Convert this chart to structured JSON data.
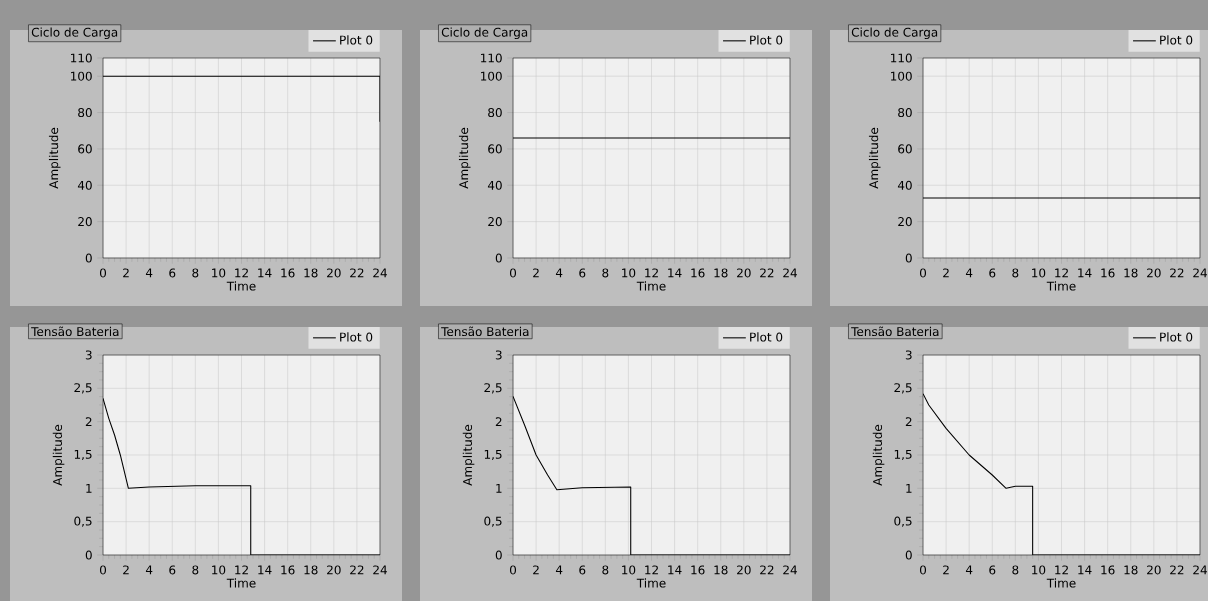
{
  "chart_data": [
    {
      "type": "line",
      "title": "Ciclo de Carga",
      "xlabel": "Time",
      "ylabel": "Amplitude",
      "xlim": [
        0,
        24
      ],
      "ylim": [
        0,
        110
      ],
      "xticks": [
        0,
        2,
        4,
        6,
        8,
        10,
        12,
        14,
        16,
        18,
        20,
        22,
        24
      ],
      "yticks": [
        0,
        20,
        40,
        60,
        80,
        100,
        110
      ],
      "grid": true,
      "legend": "top right",
      "series": [
        {
          "name": "Plot 0",
          "color": "#000000",
          "x": [
            0,
            24,
            24
          ],
          "values": [
            100,
            100,
            75
          ]
        }
      ]
    },
    {
      "type": "line",
      "title": "Ciclo de Carga",
      "xlabel": "Time",
      "ylabel": "Amplitude",
      "xlim": [
        0,
        24
      ],
      "ylim": [
        0,
        110
      ],
      "xticks": [
        0,
        2,
        4,
        6,
        8,
        10,
        12,
        14,
        16,
        18,
        20,
        22,
        24
      ],
      "yticks": [
        0,
        20,
        40,
        60,
        80,
        100,
        110
      ],
      "grid": true,
      "legend": "top right",
      "series": [
        {
          "name": "Plot 0",
          "color": "#000000",
          "x": [
            0,
            24
          ],
          "values": [
            66,
            66
          ]
        }
      ]
    },
    {
      "type": "line",
      "title": "Ciclo de Carga",
      "xlabel": "Time",
      "ylabel": "Amplitude",
      "xlim": [
        0,
        24
      ],
      "ylim": [
        0,
        110
      ],
      "xticks": [
        0,
        2,
        4,
        6,
        8,
        10,
        12,
        14,
        16,
        18,
        20,
        22,
        24
      ],
      "yticks": [
        0,
        20,
        40,
        60,
        80,
        100,
        110
      ],
      "grid": true,
      "legend": "top right",
      "series": [
        {
          "name": "Plot 0",
          "color": "#000000",
          "x": [
            0,
            24
          ],
          "values": [
            33,
            33
          ]
        }
      ]
    },
    {
      "type": "line",
      "title": "Tensão Bateria",
      "xlabel": "Time",
      "ylabel": "Amplitude",
      "xlim": [
        0,
        24
      ],
      "ylim": [
        0,
        3
      ],
      "xticks": [
        0,
        2,
        4,
        6,
        8,
        10,
        12,
        14,
        16,
        18,
        20,
        22,
        24
      ],
      "yticks": [
        0,
        {
          "value": 0.5,
          "label": "0,5"
        },
        1,
        {
          "value": 1.5,
          "label": "1,5"
        },
        2,
        {
          "value": 2.5,
          "label": "2,5"
        },
        3
      ],
      "grid": true,
      "legend": "top right",
      "series": [
        {
          "name": "Plot 0",
          "color": "#000000",
          "x": [
            0,
            0.5,
            1,
            1.5,
            2.2,
            4,
            8,
            12.8,
            12.8,
            24
          ],
          "values": [
            2.35,
            2.05,
            1.8,
            1.5,
            1.0,
            1.02,
            1.04,
            1.04,
            0,
            0
          ]
        }
      ]
    },
    {
      "type": "line",
      "title": "Tensão Bateria",
      "xlabel": "Time",
      "ylabel": "Amplitude",
      "xlim": [
        0,
        24
      ],
      "ylim": [
        0,
        3
      ],
      "xticks": [
        0,
        2,
        4,
        6,
        8,
        10,
        12,
        14,
        16,
        18,
        20,
        22,
        24
      ],
      "yticks": [
        0,
        {
          "value": 0.5,
          "label": "0,5"
        },
        1,
        {
          "value": 1.5,
          "label": "1,5"
        },
        2,
        {
          "value": 2.5,
          "label": "2,5"
        },
        3
      ],
      "grid": true,
      "legend": "top right",
      "series": [
        {
          "name": "Plot 0",
          "color": "#000000",
          "x": [
            0,
            1,
            2,
            3,
            3.8,
            6,
            10.2,
            10.2,
            24
          ],
          "values": [
            2.38,
            1.95,
            1.5,
            1.2,
            0.98,
            1.01,
            1.02,
            0,
            0
          ]
        }
      ]
    },
    {
      "type": "line",
      "title": "Tensão Bateria",
      "xlabel": "Time",
      "ylabel": "Amplitude",
      "xlim": [
        0,
        24
      ],
      "ylim": [
        0,
        3
      ],
      "xticks": [
        0,
        2,
        4,
        6,
        8,
        10,
        12,
        14,
        16,
        18,
        20,
        22,
        24
      ],
      "yticks": [
        0,
        {
          "value": 0.5,
          "label": "0,5"
        },
        1,
        {
          "value": 1.5,
          "label": "1,5"
        },
        2,
        {
          "value": 2.5,
          "label": "2,5"
        },
        3
      ],
      "grid": true,
      "legend": "top right",
      "series": [
        {
          "name": "Plot 0",
          "color": "#000000",
          "x": [
            0,
            0.5,
            2,
            4,
            6,
            7.2,
            8,
            9.5,
            9.5,
            24
          ],
          "values": [
            2.42,
            2.25,
            1.9,
            1.5,
            1.2,
            1.0,
            1.03,
            1.03,
            0,
            0
          ]
        }
      ]
    }
  ]
}
